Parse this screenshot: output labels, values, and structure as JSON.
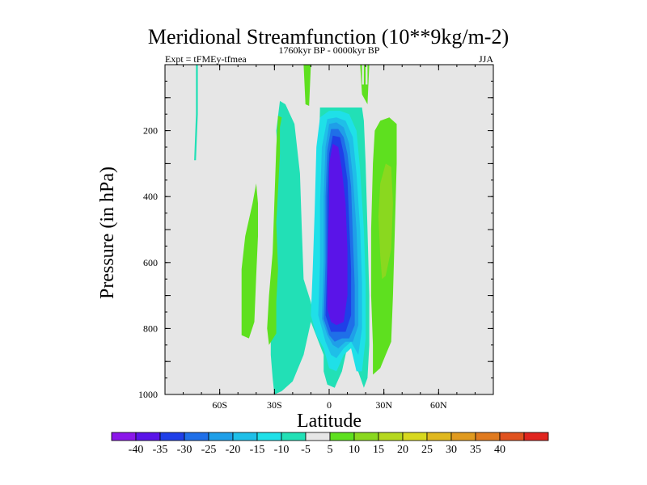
{
  "chart_data": {
    "type": "heatmap",
    "title": "Meridional Streamfunction (10**9kg/m-2)",
    "subtitle_left": "Expt = tFMEy-tfmea",
    "subtitle_center": "1760kyr BP - 0000kyr BP",
    "subtitle_right": "JJA",
    "xlabel": "Latitude",
    "ylabel": "Pressure (in hPa)",
    "xlim": [
      -90,
      90
    ],
    "ylim": [
      1000,
      0
    ],
    "x_ticks": [
      {
        "value": -60,
        "label": "60S"
      },
      {
        "value": -30,
        "label": "30S"
      },
      {
        "value": 0,
        "label": "0"
      },
      {
        "value": 30,
        "label": "30N"
      },
      {
        "value": 60,
        "label": "60N"
      }
    ],
    "y_ticks": [
      {
        "value": 200,
        "label": "200"
      },
      {
        "value": 400,
        "label": "400"
      },
      {
        "value": 600,
        "label": "600"
      },
      {
        "value": 800,
        "label": "800"
      },
      {
        "value": 1000,
        "label": "1000"
      }
    ],
    "colorbar": {
      "colors": [
        "#8b17e9",
        "#5a14e8",
        "#1f3fe8",
        "#1f6fe8",
        "#1f9fe8",
        "#1fbfe8",
        "#1fe0e8",
        "#22e0b6",
        "#e6e6e6",
        "#5ee01f",
        "#8ad81f",
        "#b5d81f",
        "#d8d81f",
        "#e0b81f",
        "#e09a1f",
        "#e07a1f",
        "#e0521f",
        "#e0251f"
      ],
      "labels": [
        "-40",
        "-35",
        "-30",
        "-25",
        "-20",
        "-15",
        "-10",
        "-5",
        "5",
        "10",
        "15",
        "20",
        "25",
        "30",
        "35",
        "40"
      ]
    },
    "contours": [
      {
        "level": "-5",
        "color": "#22e0b6",
        "polygon": [
          [
            -30,
            1000
          ],
          [
            -31,
            950
          ],
          [
            -32,
            880
          ],
          [
            -32,
            780
          ],
          [
            -31,
            680
          ],
          [
            -31,
            580
          ],
          [
            -30,
            480
          ],
          [
            -29,
            380
          ],
          [
            -28,
            290
          ],
          [
            -29,
            200
          ],
          [
            -27,
            110
          ],
          [
            -24,
            120
          ],
          [
            -19,
            180
          ],
          [
            -16,
            330
          ],
          [
            -15,
            500
          ],
          [
            -14,
            650
          ],
          [
            -10,
            720
          ],
          [
            -8,
            780
          ],
          [
            -5,
            130
          ],
          [
            15,
            130
          ],
          [
            18,
            130
          ],
          [
            19,
            170
          ],
          [
            20,
            300
          ],
          [
            21,
            500
          ],
          [
            22,
            700
          ],
          [
            22,
            850
          ],
          [
            21,
            950
          ],
          [
            19,
            980
          ],
          [
            14,
            900
          ],
          [
            11,
            830
          ],
          [
            7,
            930
          ],
          [
            3,
            980
          ],
          [
            -1,
            970
          ],
          [
            -3,
            930
          ],
          [
            -3,
            880
          ],
          [
            -10,
            780
          ],
          [
            -14,
            880
          ],
          [
            -20,
            960
          ],
          [
            -26,
            990
          ]
        ]
      },
      {
        "level": "-10",
        "color": "#1fe0e8",
        "polygon": [
          [
            -10,
            760
          ],
          [
            -9,
            620
          ],
          [
            -8,
            450
          ],
          [
            -7,
            250
          ],
          [
            -5,
            160
          ],
          [
            0,
            140
          ],
          [
            6,
            140
          ],
          [
            11,
            150
          ],
          [
            15,
            200
          ],
          [
            17,
            320
          ],
          [
            19,
            500
          ],
          [
            20,
            660
          ],
          [
            20,
            830
          ],
          [
            18,
            930
          ],
          [
            15,
            930
          ],
          [
            12,
            860
          ],
          [
            8,
            880
          ],
          [
            4,
            930
          ],
          [
            0,
            920
          ],
          [
            -3,
            860
          ],
          [
            -7,
            820
          ]
        ]
      },
      {
        "level": "-15",
        "color": "#1fbfe8",
        "polygon": [
          [
            -6,
            760
          ],
          [
            -5,
            600
          ],
          [
            -5,
            420
          ],
          [
            -4,
            250
          ],
          [
            -1,
            165
          ],
          [
            4,
            160
          ],
          [
            9,
            170
          ],
          [
            13,
            220
          ],
          [
            15,
            330
          ],
          [
            17,
            500
          ],
          [
            18,
            660
          ],
          [
            18,
            800
          ],
          [
            16,
            880
          ],
          [
            12,
            840
          ],
          [
            8,
            860
          ],
          [
            4,
            890
          ],
          [
            1,
            880
          ],
          [
            -2,
            840
          ]
        ]
      },
      {
        "level": "-20",
        "color": "#1f9fe8",
        "polygon": [
          [
            -4,
            770
          ],
          [
            -3,
            600
          ],
          [
            -3,
            400
          ],
          [
            -2,
            250
          ],
          [
            0,
            180
          ],
          [
            4,
            175
          ],
          [
            8,
            190
          ],
          [
            11,
            240
          ],
          [
            13,
            340
          ],
          [
            15,
            500
          ],
          [
            16,
            660
          ],
          [
            16,
            790
          ],
          [
            13,
            840
          ],
          [
            9,
            840
          ],
          [
            5,
            860
          ],
          [
            2,
            850
          ],
          [
            -1,
            820
          ]
        ]
      },
      {
        "level": "-25",
        "color": "#1f6fe8",
        "polygon": [
          [
            -3,
            770
          ],
          [
            -2,
            600
          ],
          [
            -2,
            400
          ],
          [
            -1,
            260
          ],
          [
            1,
            195
          ],
          [
            5,
            195
          ],
          [
            8,
            220
          ],
          [
            10,
            270
          ],
          [
            12,
            370
          ],
          [
            13,
            520
          ],
          [
            14,
            670
          ],
          [
            14,
            790
          ],
          [
            11,
            830
          ],
          [
            7,
            830
          ],
          [
            3,
            840
          ],
          [
            0,
            820
          ]
        ]
      },
      {
        "level": "-30",
        "color": "#1f3fe8",
        "polygon": [
          [
            -2,
            760
          ],
          [
            -1,
            600
          ],
          [
            -1,
            400
          ],
          [
            0,
            270
          ],
          [
            2,
            215
          ],
          [
            6,
            220
          ],
          [
            8,
            270
          ],
          [
            10,
            350
          ],
          [
            11,
            480
          ],
          [
            12,
            620
          ],
          [
            12,
            760
          ],
          [
            9,
            810
          ],
          [
            5,
            810
          ],
          [
            1,
            810
          ]
        ]
      },
      {
        "level": "-35",
        "color": "#5a14e8",
        "polygon": [
          [
            -1,
            740
          ],
          [
            -1,
            600
          ],
          [
            0,
            420
          ],
          [
            0,
            300
          ],
          [
            2,
            240
          ],
          [
            5,
            250
          ],
          [
            7,
            320
          ],
          [
            9,
            420
          ],
          [
            10,
            560
          ],
          [
            10,
            700
          ],
          [
            8,
            780
          ],
          [
            4,
            790
          ],
          [
            1,
            780
          ]
        ]
      },
      {
        "level": "-5",
        "color": "#22e0b6",
        "polygon": [
          [
            -74,
            290
          ],
          [
            -73,
            150
          ],
          [
            -73,
            0
          ],
          [
            -72,
            0
          ],
          [
            -72,
            150
          ],
          [
            -73,
            290
          ]
        ]
      },
      {
        "level": "10",
        "color": "#5ee01f",
        "polygon": [
          [
            -31,
            570
          ],
          [
            -33,
            700
          ],
          [
            -34,
            800
          ],
          [
            -33,
            850
          ],
          [
            -29,
            815
          ],
          [
            -29,
            720
          ],
          [
            -28,
            620
          ],
          [
            -29,
            480
          ],
          [
            -28,
            380
          ],
          [
            -27,
            270
          ],
          [
            -27,
            190
          ],
          [
            -26,
            160
          ],
          [
            -28,
            155
          ],
          [
            -29,
            250
          ]
        ]
      },
      {
        "level": "10",
        "color": "#5ee01f",
        "polygon": [
          [
            -48,
            720
          ],
          [
            -48,
            620
          ],
          [
            -46,
            520
          ],
          [
            -42,
            420
          ],
          [
            -40,
            360
          ],
          [
            -39,
            420
          ],
          [
            -39,
            520
          ],
          [
            -40,
            640
          ],
          [
            -41,
            780
          ],
          [
            -44,
            830
          ],
          [
            -48,
            820
          ]
        ]
      },
      {
        "level": "10",
        "color": "#5ee01f",
        "polygon": [
          [
            -14,
            0
          ],
          [
            -13,
            120
          ],
          [
            -11,
            125
          ],
          [
            -10,
            0
          ]
        ]
      },
      {
        "level": "10",
        "color": "#5ee01f",
        "polygon": [
          [
            24,
            940
          ],
          [
            24,
            850
          ],
          [
            23,
            700
          ],
          [
            23,
            500
          ],
          [
            24,
            300
          ],
          [
            25,
            200
          ],
          [
            28,
            170
          ],
          [
            33,
            160
          ],
          [
            37,
            180
          ],
          [
            37,
            300
          ],
          [
            36,
            500
          ],
          [
            35,
            700
          ],
          [
            34,
            840
          ],
          [
            31,
            880
          ],
          [
            28,
            920
          ]
        ]
      },
      {
        "level": "15",
        "color": "#8ad81f",
        "polygon": [
          [
            28,
            580
          ],
          [
            27,
            460
          ],
          [
            28,
            360
          ],
          [
            31,
            300
          ],
          [
            34,
            310
          ],
          [
            35,
            420
          ],
          [
            34,
            560
          ],
          [
            31,
            640
          ],
          [
            29,
            650
          ]
        ]
      },
      {
        "level": "10",
        "color": "#5ee01f",
        "polygon": [
          [
            17,
            0
          ],
          [
            18,
            90
          ],
          [
            21,
            120
          ],
          [
            22,
            0
          ]
        ]
      },
      {
        "level": "5",
        "color": "#e6e6e6",
        "polygon": [
          [
            18,
            0
          ],
          [
            18,
            60
          ],
          [
            19,
            60
          ],
          [
            19,
            0
          ]
        ]
      },
      {
        "level": "5",
        "color": "#e6e6e6",
        "polygon": [
          [
            20,
            0
          ],
          [
            20,
            60
          ],
          [
            21,
            60
          ],
          [
            21,
            0
          ]
        ]
      }
    ]
  }
}
